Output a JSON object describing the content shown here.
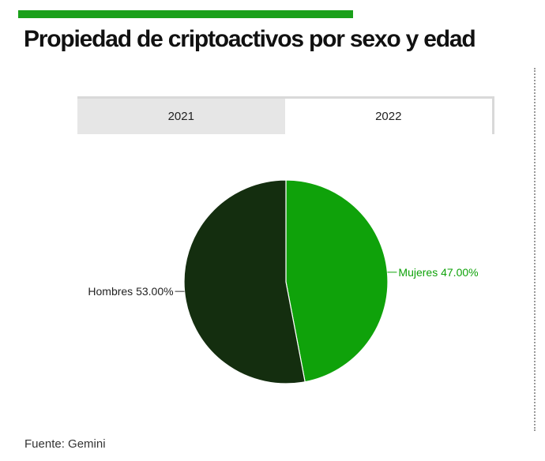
{
  "title": "Propiedad de criptoactivos por sexo y edad",
  "colors": {
    "accent": "#1aa01a",
    "dark": "#142e0f",
    "green": "#0fa20a"
  },
  "tabs": [
    {
      "label": "2021",
      "active": false
    },
    {
      "label": "2022",
      "active": true
    }
  ],
  "chart_data": {
    "type": "pie",
    "slices": [
      {
        "label": "Mujeres 47.00%",
        "value": 47.0,
        "color": "#0fa20a"
      },
      {
        "label": "Hombres 53.00%",
        "value": 53.0,
        "color": "#142e0f"
      }
    ]
  },
  "source": "Fuente: Gemini"
}
